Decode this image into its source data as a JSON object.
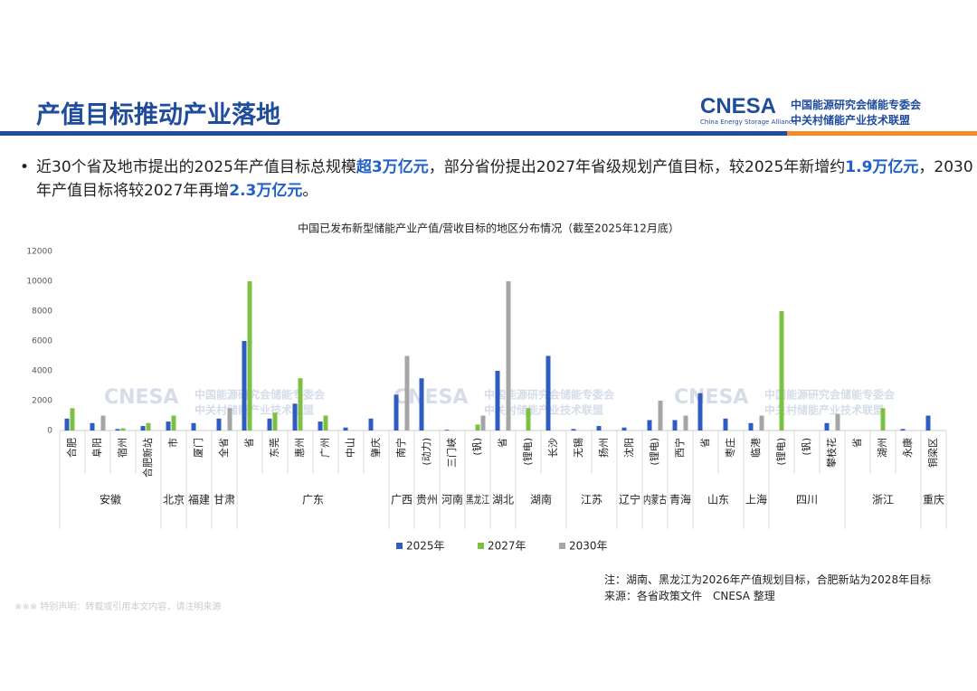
{
  "header": {
    "title": "产值目标推动产业落地",
    "logo": "CNESA",
    "logo_en": "China Energy Storage Alliance",
    "org1": "中国能源研究会储能专委会",
    "org2": "中关村储能产业技术联盟"
  },
  "bullet": [
    "近30个省及地市提出的2025年产值目标总规模",
    "超3万亿元",
    "，部分省份提出2027年省级规划产值目标，较2025年新增约",
    "1.9万亿元",
    "，2030年产值目标将较2027年再增",
    "2.3万亿元",
    "。"
  ],
  "chart_data": {
    "type": "bar",
    "title": "中国已发布新型储能产业产值/营收目标的地区分布情况（截至2025年12月底）",
    "groups": [
      {
        "label": "安徽",
        "categories": [
          "合肥",
          "阜阳",
          "宿州",
          "合肥新站"
        ]
      },
      {
        "label": "北京",
        "categories": [
          "市"
        ]
      },
      {
        "label": "福建",
        "categories": [
          "厦门"
        ]
      },
      {
        "label": "甘肃",
        "categories": [
          "全省"
        ]
      },
      {
        "label": "广东",
        "categories": [
          "省",
          "东莞",
          "惠州",
          "广州",
          "中山",
          "肇庆"
        ]
      },
      {
        "label": "广西",
        "categories": [
          "南宁"
        ]
      },
      {
        "label": "贵州",
        "categories": [
          "(动力)"
        ]
      },
      {
        "label": "河南",
        "categories": [
          "三门峡"
        ]
      },
      {
        "label": "黑龙江",
        "categories": [
          "(钒)"
        ]
      },
      {
        "label": "湖北",
        "categories": [
          "省"
        ]
      },
      {
        "label": "湖南",
        "categories": [
          "(锂电)",
          "长沙"
        ]
      },
      {
        "label": "江苏",
        "categories": [
          "无锡",
          "扬州"
        ]
      },
      {
        "label": "辽宁",
        "categories": [
          "沈阳"
        ]
      },
      {
        "label": "内蒙古",
        "categories": [
          "(锂电)"
        ]
      },
      {
        "label": "青海",
        "categories": [
          "西宁"
        ]
      },
      {
        "label": "山东",
        "categories": [
          "省",
          "枣庄"
        ]
      },
      {
        "label": "上海",
        "categories": [
          "临港"
        ]
      },
      {
        "label": "四川",
        "categories": [
          "(锂电)",
          "(钒)",
          "攀枝花"
        ]
      },
      {
        "label": "浙江",
        "categories": [
          "省",
          "湖州",
          "永康"
        ]
      },
      {
        "label": "重庆",
        "categories": [
          "铜梁区"
        ]
      }
    ],
    "series": [
      {
        "name": "2025年",
        "color": "#2f5cc0",
        "values": [
          800,
          500,
          100,
          300,
          600,
          500,
          800,
          6000,
          800,
          1800,
          600,
          200,
          800,
          2400,
          3500,
          50,
          null,
          4000,
          null,
          5000,
          100,
          300,
          200,
          700,
          700,
          2500,
          800,
          500,
          null,
          null,
          500,
          null,
          null,
          100,
          1000
        ]
      },
      {
        "name": "2027年",
        "color": "#7cc144",
        "values": [
          1500,
          null,
          150,
          500,
          1000,
          null,
          null,
          10000,
          1200,
          3500,
          1000,
          null,
          null,
          null,
          null,
          null,
          400,
          null,
          1500,
          null,
          null,
          null,
          null,
          null,
          null,
          null,
          null,
          null,
          8000,
          null,
          null,
          null,
          1500,
          null,
          null
        ]
      },
      {
        "name": "2030年",
        "color": "#a5a5a5",
        "values": [
          null,
          1000,
          null,
          null,
          null,
          null,
          1500,
          null,
          null,
          null,
          null,
          null,
          null,
          5000,
          null,
          null,
          1000,
          10000,
          null,
          null,
          null,
          null,
          null,
          2000,
          1000,
          null,
          null,
          1000,
          null,
          null,
          1100,
          null,
          null,
          null,
          null
        ]
      }
    ],
    "ylim": [
      0,
      12000
    ],
    "yticks": [
      0,
      2000,
      4000,
      6000,
      8000,
      10000,
      12000
    ],
    "legend": "bottom"
  },
  "notes": [
    "注：湖南、黑龙江为2026年产值规划目标，合肥新站为2028年目标",
    "来源：各省政策文件　CNESA 整理"
  ],
  "disclaimer": "※※※ 特别声明：转载或引用本文内容，请注明来源"
}
